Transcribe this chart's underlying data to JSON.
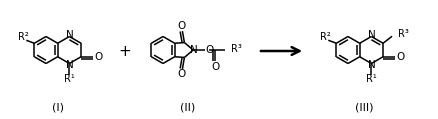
{
  "fig_width": 4.38,
  "fig_height": 1.19,
  "dpi": 100,
  "bg_color": "#ffffff",
  "line_color": "#000000",
  "label_I": "(I)",
  "label_II": "(II)",
  "label_III": "(III)",
  "plus_symbol": "+",
  "BL": 13.5
}
